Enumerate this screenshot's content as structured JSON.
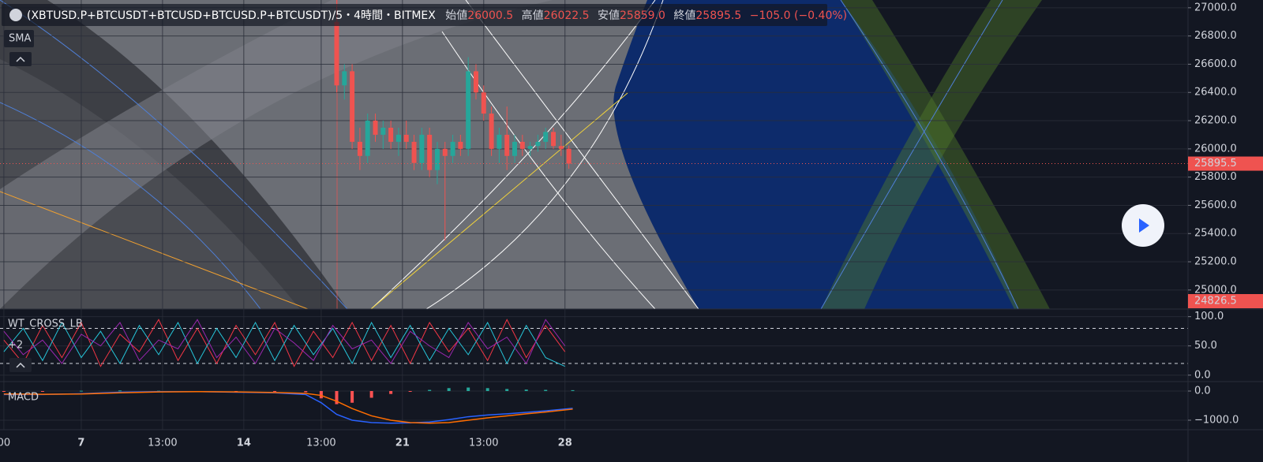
{
  "header": {
    "symbol": "(XBTUSD.P+BTCUSDT+BTCUSD+BTCUSD.P+BTCUSDT)/5・4時間・BITMEX",
    "ohlc": [
      {
        "label": "始値",
        "value": "26000.5"
      },
      {
        "label": "高値",
        "value": "26022.5"
      },
      {
        "label": "安値",
        "value": "25859.0"
      },
      {
        "label": "終値",
        "value": "25895.5"
      }
    ],
    "change": "−105.0 (−0.40%)"
  },
  "chart_data": [
    {
      "type": "candlestick",
      "title": "SMA",
      "up_color": "#26a69a",
      "down_color": "#ef5350",
      "xlim": [
        -1,
        306
      ],
      "xticks": [
        {
          "value": 0,
          "label": "00"
        },
        {
          "value": 20,
          "label": "7"
        },
        {
          "value": 41,
          "label": "13:00"
        },
        {
          "value": 62,
          "label": "14"
        },
        {
          "value": 82,
          "label": "13:00"
        },
        {
          "value": 103,
          "label": "21"
        },
        {
          "value": 124,
          "label": "13:00"
        },
        {
          "value": 145,
          "label": "28"
        }
      ],
      "ylim": [
        24865,
        27055
      ],
      "yticks": [
        {
          "value": 25000,
          "label": "25000.0"
        },
        {
          "value": 25200,
          "label": "25200.0"
        },
        {
          "value": 25400,
          "label": "25400.0"
        },
        {
          "value": 25600,
          "label": "25600.0"
        },
        {
          "value": 25800,
          "label": "25800.0"
        },
        {
          "value": 26000,
          "label": "26000.0"
        },
        {
          "value": 26200,
          "label": "26200.0"
        },
        {
          "value": 26400,
          "label": "26400.0"
        },
        {
          "value": 26600,
          "label": "26600.0"
        },
        {
          "value": 26800,
          "label": "26800.0"
        },
        {
          "value": 27000,
          "label": "27000.0"
        }
      ],
      "grid": true,
      "last_price": 25895.5,
      "marker_price": 24826.5,
      "x": [
        86,
        88,
        90,
        92,
        94,
        96,
        98,
        100,
        102,
        104,
        106,
        108,
        110,
        112,
        114,
        116,
        118,
        120,
        122,
        124,
        126,
        128,
        130,
        132,
        134,
        136,
        138,
        140,
        142,
        144,
        146
      ],
      "open": [
        26900,
        26450,
        26550,
        26050,
        25950,
        26200,
        26100,
        26150,
        26050,
        26100,
        26050,
        25900,
        26100,
        25850,
        26000,
        25950,
        26050,
        26000,
        26550,
        26400,
        26250,
        26000,
        26100,
        25950,
        26050,
        26000,
        26020,
        26050,
        26120,
        26020,
        26000.5
      ],
      "high": [
        27100,
        26600,
        26600,
        26150,
        26250,
        26250,
        26200,
        26200,
        26150,
        26200,
        26100,
        26150,
        26150,
        26050,
        26050,
        26100,
        26100,
        26650,
        26600,
        26450,
        26300,
        26150,
        26300,
        26100,
        26100,
        26050,
        26100,
        26150,
        26150,
        26100,
        26022.5
      ],
      "low": [
        26400,
        26350,
        26000,
        25850,
        25900,
        26050,
        26000,
        26000,
        25950,
        26000,
        25850,
        25850,
        25800,
        25750,
        25350,
        25900,
        25950,
        25950,
        26350,
        26200,
        25950,
        25900,
        25850,
        25900,
        25950,
        25950,
        25980,
        26000,
        26000,
        25950,
        25859.0
      ],
      "close": [
        26450,
        26550,
        26050,
        25950,
        26200,
        26100,
        26150,
        26050,
        26100,
        26050,
        25900,
        26100,
        25850,
        26000,
        25950,
        26050,
        26000,
        26550,
        26400,
        26250,
        26000,
        26100,
        25950,
        26050,
        26000,
        26020,
        26050,
        26120,
        26020,
        26000,
        25895.5
      ]
    },
    {
      "type": "line",
      "title": "WT_CROSS_LB",
      "subtitle": "+2",
      "ylim": [
        -11,
        113
      ],
      "yticks": [
        {
          "value": 0,
          "label": "0.0"
        },
        {
          "value": 50,
          "label": "50.0"
        },
        {
          "value": 100,
          "label": "100.0"
        }
      ],
      "grid": true,
      "reference_lines": [
        80,
        20
      ],
      "x": [
        0,
        5,
        10,
        15,
        20,
        25,
        30,
        35,
        40,
        45,
        50,
        55,
        60,
        65,
        70,
        75,
        80,
        85,
        90,
        95,
        100,
        105,
        110,
        115,
        120,
        125,
        130,
        135,
        140,
        145
      ],
      "series": [
        {
          "color": "#f23645",
          "values": [
            60,
            20,
            85,
            30,
            90,
            15,
            70,
            40,
            95,
            25,
            80,
            20,
            85,
            35,
            90,
            15,
            75,
            30,
            90,
            25,
            85,
            20,
            90,
            40,
            80,
            25,
            95,
            30,
            85,
            40
          ]
        },
        {
          "color": "#26c6da",
          "values": [
            40,
            80,
            25,
            90,
            30,
            75,
            20,
            85,
            35,
            90,
            20,
            80,
            30,
            90,
            25,
            85,
            35,
            80,
            20,
            90,
            30,
            85,
            25,
            80,
            35,
            90,
            20,
            85,
            30,
            15
          ]
        },
        {
          "color": "#9c27b0",
          "values": [
            75,
            35,
            60,
            20,
            70,
            50,
            90,
            25,
            60,
            45,
            95,
            30,
            65,
            20,
            80,
            55,
            25,
            85,
            45,
            60,
            20,
            75,
            50,
            30,
            90,
            45,
            65,
            20,
            95,
            50
          ]
        }
      ]
    },
    {
      "type": "line",
      "title": "MACD",
      "ylim": [
        -1324,
        324
      ],
      "yticks": [
        {
          "value": -1000,
          "label": "−1000.0"
        },
        {
          "value": 0,
          "label": "0.0"
        }
      ],
      "grid": true,
      "x": [
        0,
        10,
        20,
        30,
        40,
        50,
        60,
        70,
        78,
        82,
        86,
        90,
        95,
        100,
        105,
        110,
        115,
        120,
        125,
        130,
        135,
        140,
        147
      ],
      "series": [
        {
          "kind": "histogram",
          "color": "#26a69a",
          "negative_color": "#ff5252",
          "values": [
            -20,
            -10,
            10,
            20,
            10,
            0,
            -10,
            -10,
            -40,
            -250,
            -450,
            -400,
            -230,
            -100,
            -10,
            40,
            100,
            120,
            100,
            70,
            50,
            40,
            30
          ]
        },
        {
          "color": "#2962ff",
          "values": [
            -120,
            -120,
            -90,
            -40,
            -20,
            -20,
            -40,
            -60,
            -120,
            -400,
            -800,
            -1000,
            -1080,
            -1100,
            -1090,
            -1060,
            -980,
            -880,
            -820,
            -780,
            -730,
            -680,
            -590
          ]
        },
        {
          "color": "#ff6d00",
          "values": [
            -100,
            -110,
            -100,
            -60,
            -30,
            -20,
            -30,
            -50,
            -80,
            -150,
            -350,
            -600,
            -850,
            -1000,
            -1080,
            -1100,
            -1080,
            -1000,
            -920,
            -850,
            -780,
            -720,
            -620
          ]
        }
      ]
    }
  ]
}
